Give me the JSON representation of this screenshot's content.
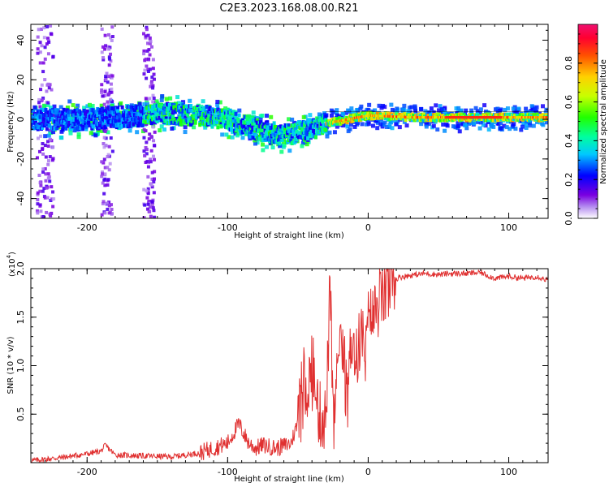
{
  "title": "C2E3.2023.168.08.00.R21",
  "chart_data": [
    {
      "type": "heatmap",
      "xlabel": "Height of straight line (km)",
      "ylabel": "Frequency (Hz)",
      "xlim": [
        -240,
        128
      ],
      "ylim": [
        -50,
        48
      ],
      "xticks": [
        -200,
        -100,
        0,
        100
      ],
      "xtick_labels": [
        "-200",
        "-100",
        "0",
        "100"
      ],
      "yticks": [
        -40,
        -20,
        0,
        20,
        40
      ],
      "ytick_labels": [
        "-40",
        "-20",
        "0",
        "20",
        "40"
      ],
      "ridge": {
        "x": [
          -235,
          -200,
          -160,
          -140,
          -120,
          -100,
          -80,
          -60,
          -45,
          -30,
          -15,
          0,
          30,
          60,
          100,
          128
        ],
        "freq": [
          0,
          0,
          2,
          3,
          2,
          0,
          -5,
          -8,
          -6,
          -2,
          0,
          2,
          1,
          1,
          1,
          1
        ]
      },
      "colorbar": {
        "label": "Normalized spectral amplitude",
        "range": [
          0,
          1
        ],
        "ticks": [
          0.0,
          0.2,
          0.4,
          0.6,
          0.8
        ],
        "tick_labels": [
          "0.0",
          "0.2",
          "0.4",
          "0.6",
          "0.8"
        ]
      }
    },
    {
      "type": "line",
      "xlabel": "Height of straight line (km)",
      "ylabel": "SNR (10 * v/v)",
      "y_scale_label": "(x10",
      "y_scale_exponent": "4",
      "y_scale_close": ")",
      "xlim": [
        -240,
        128
      ],
      "ylim": [
        0,
        2.0
      ],
      "xticks": [
        -200,
        -100,
        0,
        100
      ],
      "xtick_labels": [
        "-200",
        "-100",
        "0",
        "100"
      ],
      "yticks": [
        0.5,
        1.0,
        1.5,
        2.0
      ],
      "ytick_labels": [
        "0.5",
        "1.0",
        "1.5",
        "2.0"
      ],
      "series": [
        {
          "name": "SNR",
          "color": "#e03030",
          "x": [
            -240,
            -220,
            -200,
            -190,
            -187,
            -180,
            -160,
            -140,
            -120,
            -100,
            -92,
            -85,
            -80,
            -75,
            -65,
            -55,
            -48,
            -45,
            -40,
            -35,
            -30,
            -27,
            -25,
            -22,
            -18,
            -15,
            -12,
            -8,
            -5,
            -2,
            0,
            5,
            10,
            15,
            20,
            25,
            30,
            40,
            50,
            60,
            70,
            80,
            90,
            100,
            110,
            120,
            128
          ],
          "values": [
            0.02,
            0.05,
            0.09,
            0.12,
            0.18,
            0.08,
            0.07,
            0.06,
            0.1,
            0.2,
            0.4,
            0.2,
            0.15,
            0.18,
            0.15,
            0.2,
            0.5,
            0.75,
            0.9,
            0.5,
            0.45,
            1.85,
            0.3,
            0.9,
            1.2,
            0.6,
            1.3,
            1.05,
            1.4,
            1.05,
            1.45,
            1.55,
            1.7,
            1.8,
            1.9,
            1.92,
            1.93,
            1.95,
            1.94,
            1.95,
            1.95,
            1.96,
            1.9,
            1.92,
            1.9,
            1.92,
            1.88
          ]
        }
      ]
    }
  ]
}
